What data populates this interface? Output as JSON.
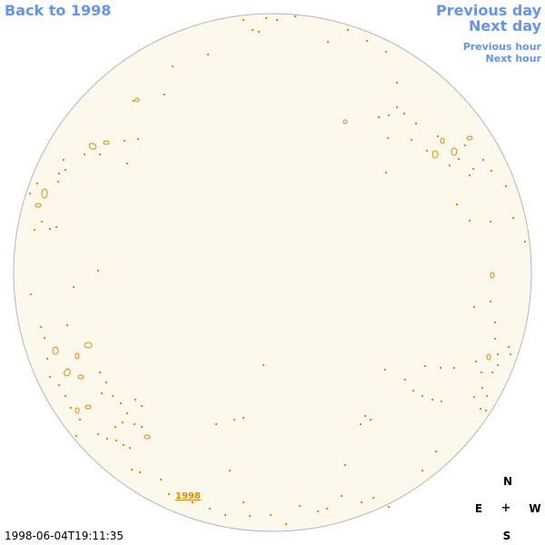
{
  "nav": {
    "back": "Back to 1998",
    "previous_day": "Previous day",
    "next_day": "Next day",
    "previous_hour": "Previous hour",
    "next_hour": "Next hour"
  },
  "timestamp": "1998-06-04T19:11:35",
  "compass": {
    "north": "N",
    "south": "S",
    "east": "E",
    "west": "W",
    "center": "+"
  },
  "sun": {
    "disk_fill": "#fdf8ec",
    "disk_stroke": "#b5b5b5",
    "contour_color": "#e58a00",
    "region_label": "1998"
  },
  "colors": {
    "link": "#6495ed",
    "contour": "#e58a00"
  }
}
